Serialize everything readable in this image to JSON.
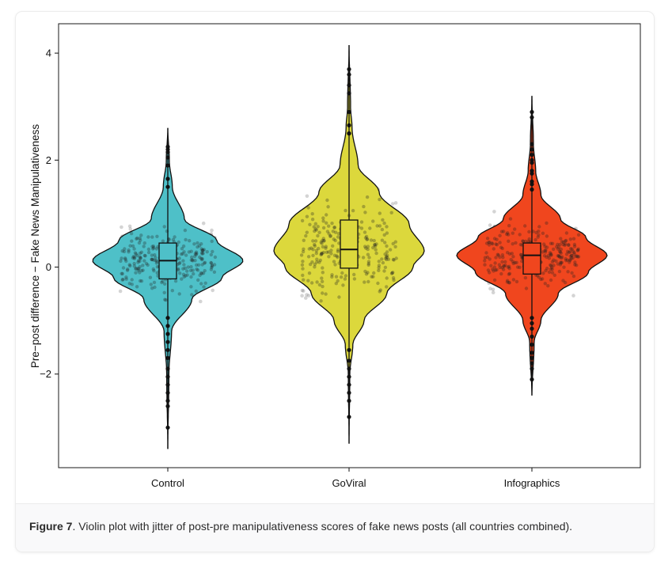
{
  "figure": {
    "caption_label": "Figure 7",
    "caption_text": ". Violin plot with jitter of post-pre manipulativeness scores of fake news posts (all countries combined)."
  },
  "chart_data": {
    "type": "violin",
    "ylabel": "Pre−post difference − Fake News Manipulativeness",
    "xlabel": "",
    "ylim": [
      -3.75,
      4.55
    ],
    "y_ticks": [
      4,
      2,
      0,
      -2
    ],
    "y_tick_labels": [
      "4",
      "2",
      "0",
      "−2"
    ],
    "categories": [
      "Control",
      "GoViral",
      "Infographics"
    ],
    "grid": false,
    "legend": "none",
    "jitter": true,
    "series": [
      {
        "name": "Control",
        "color": "#4ec0c8",
        "range": [
          -3.4,
          2.6
        ],
        "median": 0.12,
        "q1": -0.22,
        "q3": 0.45,
        "density_peak": 0.12,
        "width_at": [
          [
            -3.4,
            0.0
          ],
          [
            -2.0,
            0.015
          ],
          [
            -1.2,
            0.05
          ],
          [
            -0.6,
            0.32
          ],
          [
            -0.2,
            0.72
          ],
          [
            0.12,
            1.0
          ],
          [
            0.5,
            0.65
          ],
          [
            0.9,
            0.22
          ],
          [
            1.5,
            0.06
          ],
          [
            2.0,
            0.02
          ],
          [
            2.6,
            0.0
          ]
        ],
        "outliers": [
          2.25,
          2.2,
          2.15,
          2.05,
          1.9,
          1.65,
          1.5,
          -0.95,
          -1.1,
          -1.25,
          -1.4,
          -1.55,
          -1.7,
          -1.9,
          -2.05,
          -2.2,
          -2.35,
          -2.5,
          -2.6,
          -3.0
        ]
      },
      {
        "name": "GoViral",
        "color": "#dcd83c",
        "range": [
          -3.3,
          4.15
        ],
        "median": 0.33,
        "q1": -0.02,
        "q3": 0.88,
        "density_peak": 0.3,
        "width_at": [
          [
            -3.3,
            0.0
          ],
          [
            -2.0,
            0.01
          ],
          [
            -1.45,
            0.05
          ],
          [
            -1.0,
            0.2
          ],
          [
            -0.5,
            0.5
          ],
          [
            0.0,
            0.85
          ],
          [
            0.3,
            1.0
          ],
          [
            0.8,
            0.8
          ],
          [
            1.4,
            0.4
          ],
          [
            1.9,
            0.12
          ],
          [
            2.6,
            0.04
          ],
          [
            3.0,
            0.02
          ],
          [
            4.15,
            0.0
          ]
        ],
        "outliers": [
          3.7,
          3.6,
          3.4,
          3.25,
          2.9,
          2.65,
          2.5,
          2.5,
          -1.55,
          -1.75,
          -1.9,
          -2.05,
          -2.2,
          -2.35,
          -2.5,
          -2.8
        ]
      },
      {
        "name": "Infographics",
        "color": "#f0461e",
        "range": [
          -2.4,
          3.2
        ],
        "median": 0.22,
        "q1": -0.13,
        "q3": 0.45,
        "density_peak": 0.22,
        "width_at": [
          [
            -2.4,
            0.0
          ],
          [
            -1.4,
            0.03
          ],
          [
            -1.0,
            0.12
          ],
          [
            -0.5,
            0.35
          ],
          [
            -0.1,
            0.75
          ],
          [
            0.22,
            1.0
          ],
          [
            0.55,
            0.72
          ],
          [
            0.9,
            0.38
          ],
          [
            1.35,
            0.12
          ],
          [
            1.8,
            0.05
          ],
          [
            2.3,
            0.02
          ],
          [
            3.2,
            0.0
          ]
        ],
        "outliers": [
          2.9,
          2.8,
          2.3,
          2.2,
          2.1,
          2.0,
          1.95,
          1.8,
          1.75,
          1.6,
          1.55,
          1.45,
          -0.95,
          -1.05,
          -1.15,
          -1.3,
          -1.45,
          -1.6,
          -1.7,
          -1.8,
          -1.9,
          -2.1
        ]
      }
    ]
  }
}
